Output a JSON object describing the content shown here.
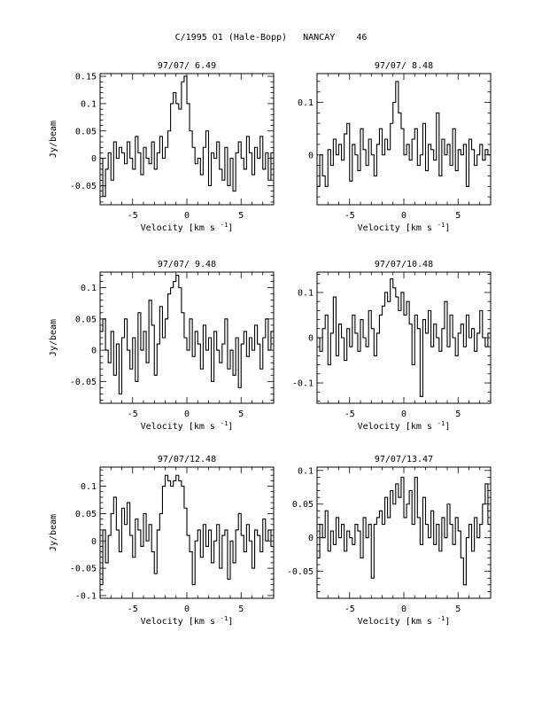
{
  "page": {
    "title": "C/1995 O1 (Hale-Bopp)   NANCAY    46"
  },
  "chart_data": [
    {
      "type": "line",
      "title": "97/07/ 6.49",
      "xlabel": "Velocity [km s",
      "xlabel_sup": "-1",
      "xlabel_close": "]",
      "ylabel": "Jy/beam",
      "xlim": [
        -8,
        8
      ],
      "ylim": [
        -0.085,
        0.155
      ],
      "xticks": [
        -5,
        0,
        5
      ],
      "xtick_labels": [
        "-5",
        "0",
        "5"
      ],
      "yticks": [
        -0.05,
        0,
        0.05,
        0.1,
        0.15
      ],
      "ytick_labels": [
        "-0.05",
        "0",
        "0.05",
        "0.1",
        "0.15"
      ],
      "series": [
        {
          "x": [
            -8.0,
            -7.75,
            -7.5,
            -7.25,
            -7.0,
            -6.75,
            -6.5,
            -6.25,
            -6.0,
            -5.75,
            -5.5,
            -5.25,
            -5.0,
            -4.75,
            -4.5,
            -4.25,
            -4.0,
            -3.75,
            -3.5,
            -3.25,
            -3.0,
            -2.75,
            -2.5,
            -2.25,
            -2.0,
            -1.75,
            -1.5,
            -1.25,
            -1.0,
            -0.75,
            -0.5,
            -0.25,
            0.0,
            0.25,
            0.5,
            0.75,
            1.0,
            1.25,
            1.5,
            1.75,
            2.0,
            2.25,
            2.5,
            2.75,
            3.0,
            3.25,
            3.5,
            3.75,
            4.0,
            4.25,
            4.5,
            4.75,
            5.0,
            5.25,
            5.5,
            5.75,
            6.0,
            6.25,
            6.5,
            6.75,
            7.0,
            7.25,
            7.5,
            7.75
          ],
          "y": [
            0.0,
            -0.07,
            -0.02,
            0.01,
            -0.04,
            0.03,
            0.0,
            0.02,
            0.01,
            -0.01,
            0.03,
            0.0,
            -0.02,
            0.04,
            0.01,
            -0.03,
            0.02,
            0.0,
            -0.01,
            0.03,
            -0.02,
            0.01,
            0.04,
            0.0,
            0.02,
            0.05,
            0.1,
            0.12,
            0.1,
            0.09,
            0.14,
            0.15,
            0.1,
            0.05,
            0.02,
            -0.01,
            0.0,
            -0.03,
            0.02,
            0.05,
            -0.05,
            0.01,
            0.0,
            0.03,
            -0.02,
            -0.04,
            0.02,
            -0.05,
            0.0,
            -0.06,
            0.01,
            0.03,
            0.0,
            -0.02,
            0.04,
            0.01,
            -0.03,
            0.02,
            0.0,
            0.04,
            -0.02,
            0.01,
            -0.04,
            0.01
          ]
        }
      ]
    },
    {
      "type": "line",
      "title": "97/07/ 8.48",
      "xlabel": "Velocity [km s",
      "xlabel_sup": "-1",
      "xlabel_close": "]",
      "ylabel": "",
      "xlim": [
        -8,
        8
      ],
      "ylim": [
        -0.095,
        0.155
      ],
      "xticks": [
        -5,
        0,
        5
      ],
      "xtick_labels": [
        "-5",
        "0",
        "5"
      ],
      "yticks": [
        0,
        0.1
      ],
      "ytick_labels": [
        "0",
        "0.1"
      ],
      "series": [
        {
          "x": [
            -8.0,
            -7.75,
            -7.5,
            -7.25,
            -7.0,
            -6.75,
            -6.5,
            -6.25,
            -6.0,
            -5.75,
            -5.5,
            -5.25,
            -5.0,
            -4.75,
            -4.5,
            -4.25,
            -4.0,
            -3.75,
            -3.5,
            -3.25,
            -3.0,
            -2.75,
            -2.5,
            -2.25,
            -2.0,
            -1.75,
            -1.5,
            -1.25,
            -1.0,
            -0.75,
            -0.5,
            -0.25,
            0.0,
            0.25,
            0.5,
            0.75,
            1.0,
            1.25,
            1.5,
            1.75,
            2.0,
            2.25,
            2.5,
            2.75,
            3.0,
            3.25,
            3.5,
            3.75,
            4.0,
            4.25,
            4.5,
            4.75,
            5.0,
            5.25,
            5.5,
            5.75,
            6.0,
            6.25,
            6.5,
            6.75,
            7.0,
            7.25,
            7.5,
            7.75
          ],
          "y": [
            -0.06,
            0.0,
            -0.04,
            -0.06,
            0.01,
            -0.02,
            0.03,
            0.0,
            0.02,
            -0.01,
            0.04,
            0.06,
            -0.05,
            0.02,
            0.0,
            -0.03,
            0.05,
            0.01,
            -0.02,
            0.03,
            0.0,
            -0.04,
            0.02,
            0.05,
            0.0,
            0.03,
            0.01,
            0.06,
            0.1,
            0.14,
            0.08,
            0.05,
            0.0,
            0.02,
            -0.01,
            0.03,
            0.05,
            -0.02,
            0.0,
            0.06,
            -0.03,
            0.02,
            0.01,
            -0.01,
            0.08,
            -0.04,
            0.03,
            0.0,
            0.02,
            -0.02,
            0.05,
            -0.03,
            0.01,
            0.0,
            0.02,
            -0.06,
            0.03,
            0.01,
            -0.02,
            0.0,
            0.02,
            -0.01,
            0.01,
            0.0
          ]
        }
      ]
    },
    {
      "type": "line",
      "title": "97/07/ 9.48",
      "xlabel": "Velocity [km s",
      "xlabel_sup": "-1",
      "xlabel_close": "]",
      "ylabel": "Jy/beam",
      "xlim": [
        -8,
        8
      ],
      "ylim": [
        -0.085,
        0.125
      ],
      "xticks": [
        -5,
        0,
        5
      ],
      "xtick_labels": [
        "-5",
        "0",
        "5"
      ],
      "yticks": [
        -0.05,
        0,
        0.05,
        0.1
      ],
      "ytick_labels": [
        "-0.05",
        "0",
        "0.05",
        "0.1"
      ],
      "series": [
        {
          "x": [
            -8.0,
            -7.75,
            -7.5,
            -7.25,
            -7.0,
            -6.75,
            -6.5,
            -6.25,
            -6.0,
            -5.75,
            -5.5,
            -5.25,
            -5.0,
            -4.75,
            -4.5,
            -4.25,
            -4.0,
            -3.75,
            -3.5,
            -3.25,
            -3.0,
            -2.75,
            -2.5,
            -2.25,
            -2.0,
            -1.75,
            -1.5,
            -1.25,
            -1.0,
            -0.75,
            -0.5,
            -0.25,
            0.0,
            0.25,
            0.5,
            0.75,
            1.0,
            1.25,
            1.5,
            1.75,
            2.0,
            2.25,
            2.5,
            2.75,
            3.0,
            3.25,
            3.5,
            3.75,
            4.0,
            4.25,
            4.5,
            4.75,
            5.0,
            5.25,
            5.5,
            5.75,
            6.0,
            6.25,
            6.5,
            6.75,
            7.0,
            7.25,
            7.5,
            7.75
          ],
          "y": [
            0.03,
            0.05,
            0.0,
            -0.02,
            0.03,
            -0.04,
            0.01,
            -0.07,
            0.02,
            0.05,
            0.0,
            -0.03,
            0.02,
            -0.05,
            0.06,
            0.0,
            0.03,
            -0.02,
            0.08,
            0.04,
            -0.04,
            0.01,
            0.07,
            0.02,
            0.05,
            0.09,
            0.1,
            0.11,
            0.12,
            0.1,
            0.06,
            0.02,
            0.0,
            0.05,
            -0.01,
            0.03,
            0.01,
            -0.03,
            0.04,
            0.0,
            0.02,
            -0.05,
            0.03,
            0.0,
            -0.02,
            0.01,
            0.05,
            -0.03,
            0.0,
            -0.04,
            0.02,
            -0.06,
            0.01,
            0.03,
            -0.01,
            0.02,
            0.0,
            0.04,
            0.01,
            -0.03,
            0.02,
            0.05,
            0.0,
            0.03
          ]
        }
      ]
    },
    {
      "type": "line",
      "title": "97/07/10.48",
      "xlabel": "Velocity [km s",
      "xlabel_sup": "-1",
      "xlabel_close": "]",
      "ylabel": "",
      "xlim": [
        -8,
        8
      ],
      "ylim": [
        -0.145,
        0.145
      ],
      "xticks": [
        -5,
        0,
        5
      ],
      "xtick_labels": [
        "-5",
        "0",
        "5"
      ],
      "yticks": [
        -0.1,
        0,
        0.1
      ],
      "ytick_labels": [
        "-0.1",
        "0",
        "0.1"
      ],
      "series": [
        {
          "x": [
            -8.0,
            -7.75,
            -7.5,
            -7.25,
            -7.0,
            -6.75,
            -6.5,
            -6.25,
            -6.0,
            -5.75,
            -5.5,
            -5.25,
            -5.0,
            -4.75,
            -4.5,
            -4.25,
            -4.0,
            -3.75,
            -3.5,
            -3.25,
            -3.0,
            -2.75,
            -2.5,
            -2.25,
            -2.0,
            -1.75,
            -1.5,
            -1.25,
            -1.0,
            -0.75,
            -0.5,
            -0.25,
            0.0,
            0.25,
            0.5,
            0.75,
            1.0,
            1.25,
            1.5,
            1.75,
            2.0,
            2.25,
            2.5,
            2.75,
            3.0,
            3.25,
            3.5,
            3.75,
            4.0,
            4.25,
            4.5,
            4.75,
            5.0,
            5.25,
            5.5,
            5.75,
            6.0,
            6.25,
            6.5,
            6.75,
            7.0,
            7.25,
            7.5,
            7.75
          ],
          "y": [
            0.0,
            -0.03,
            0.02,
            0.05,
            -0.06,
            0.01,
            0.09,
            -0.04,
            0.03,
            0.0,
            -0.05,
            0.02,
            -0.02,
            0.05,
            0.01,
            -0.03,
            0.04,
            0.0,
            -0.02,
            0.06,
            0.02,
            -0.04,
            0.01,
            0.05,
            0.07,
            0.1,
            0.08,
            0.13,
            0.11,
            0.09,
            0.06,
            0.1,
            0.05,
            0.08,
            0.03,
            -0.06,
            0.05,
            0.02,
            -0.13,
            0.04,
            0.01,
            0.06,
            -0.02,
            0.03,
            0.0,
            -0.03,
            0.02,
            0.08,
            -0.02,
            0.05,
            0.0,
            -0.04,
            0.01,
            0.03,
            -0.02,
            0.05,
            0.0,
            0.02,
            -0.03,
            0.01,
            0.06,
            0.0,
            -0.02,
            0.01
          ]
        }
      ]
    },
    {
      "type": "line",
      "title": "97/07/12.48",
      "xlabel": "Velocity [km s",
      "xlabel_sup": "-1",
      "xlabel_close": "]",
      "ylabel": "Jy/beam",
      "xlim": [
        -8,
        8
      ],
      "ylim": [
        -0.105,
        0.135
      ],
      "xticks": [
        -5,
        0,
        5
      ],
      "xtick_labels": [
        "-5",
        "0",
        "5"
      ],
      "yticks": [
        -0.1,
        -0.05,
        0,
        0.05,
        0.1
      ],
      "ytick_labels": [
        "-0.1",
        "-0.05",
        "0",
        "0.05",
        "0.1"
      ],
      "series": [
        {
          "x": [
            -8.0,
            -7.75,
            -7.5,
            -7.25,
            -7.0,
            -6.75,
            -6.5,
            -6.25,
            -6.0,
            -5.75,
            -5.5,
            -5.25,
            -5.0,
            -4.75,
            -4.5,
            -4.25,
            -4.0,
            -3.75,
            -3.5,
            -3.25,
            -3.0,
            -2.75,
            -2.5,
            -2.25,
            -2.0,
            -1.75,
            -1.5,
            -1.25,
            -1.0,
            -0.75,
            -0.5,
            -0.25,
            0.0,
            0.25,
            0.5,
            0.75,
            1.0,
            1.25,
            1.5,
            1.75,
            2.0,
            2.25,
            2.5,
            2.75,
            3.0,
            3.25,
            3.5,
            3.75,
            4.0,
            4.25,
            4.5,
            4.75,
            5.0,
            5.25,
            5.5,
            5.75,
            6.0,
            6.25,
            6.5,
            6.75,
            7.0,
            7.25,
            7.5,
            7.75
          ],
          "y": [
            -0.08,
            0.02,
            -0.04,
            0.01,
            0.05,
            0.08,
            0.02,
            -0.02,
            0.06,
            0.03,
            0.07,
            0.01,
            -0.03,
            0.04,
            0.02,
            -0.01,
            0.05,
            0.0,
            0.03,
            -0.02,
            -0.06,
            0.02,
            0.05,
            0.1,
            0.12,
            0.11,
            0.1,
            0.11,
            0.12,
            0.11,
            0.1,
            0.06,
            0.01,
            -0.02,
            -0.08,
            0.0,
            0.02,
            -0.03,
            0.03,
            -0.01,
            0.02,
            -0.04,
            0.0,
            0.03,
            -0.05,
            0.01,
            0.02,
            -0.07,
            0.0,
            -0.04,
            0.02,
            0.05,
            0.01,
            -0.02,
            0.03,
            0.0,
            -0.05,
            0.02,
            0.01,
            -0.02,
            0.04,
            0.0,
            0.02,
            -0.01
          ]
        }
      ]
    },
    {
      "type": "line",
      "title": "97/07/13.47",
      "xlabel": "Velocity [km s",
      "xlabel_sup": "-1",
      "xlabel_close": "]",
      "ylabel": "",
      "xlim": [
        -8,
        8
      ],
      "ylim": [
        -0.09,
        0.105
      ],
      "xticks": [
        -5,
        0,
        5
      ],
      "xtick_labels": [
        "-5",
        "0",
        "5"
      ],
      "yticks": [
        -0.05,
        0,
        0.05,
        0.1
      ],
      "ytick_labels": [
        "-0.05",
        "0",
        "0.05",
        "0.1"
      ],
      "series": [
        {
          "x": [
            -8.0,
            -7.75,
            -7.5,
            -7.25,
            -7.0,
            -6.75,
            -6.5,
            -6.25,
            -6.0,
            -5.75,
            -5.5,
            -5.25,
            -5.0,
            -4.75,
            -4.5,
            -4.25,
            -4.0,
            -3.75,
            -3.5,
            -3.25,
            -3.0,
            -2.75,
            -2.5,
            -2.25,
            -2.0,
            -1.75,
            -1.5,
            -1.25,
            -1.0,
            -0.75,
            -0.5,
            -0.25,
            0.0,
            0.25,
            0.5,
            0.75,
            1.0,
            1.25,
            1.5,
            1.75,
            2.0,
            2.25,
            2.5,
            2.75,
            3.0,
            3.25,
            3.5,
            3.75,
            4.0,
            4.25,
            4.5,
            4.75,
            5.0,
            5.25,
            5.5,
            5.75,
            6.0,
            6.25,
            6.5,
            6.75,
            7.0,
            7.25,
            7.5,
            7.75
          ],
          "y": [
            -0.03,
            0.02,
            0.0,
            0.04,
            -0.02,
            0.01,
            -0.01,
            0.03,
            0.0,
            0.02,
            -0.02,
            0.01,
            0.0,
            -0.01,
            0.02,
            0.01,
            -0.03,
            0.03,
            0.0,
            0.02,
            -0.06,
            0.02,
            0.03,
            0.04,
            0.02,
            0.06,
            0.03,
            0.07,
            0.05,
            0.08,
            0.06,
            0.09,
            0.03,
            0.05,
            0.07,
            0.02,
            0.09,
            0.03,
            -0.01,
            0.06,
            0.02,
            0.0,
            0.04,
            -0.01,
            0.02,
            -0.02,
            0.03,
            0.0,
            0.05,
            0.02,
            -0.01,
            0.03,
            0.01,
            -0.03,
            -0.07,
            0.0,
            0.02,
            -0.02,
            0.03,
            0.0,
            0.02,
            0.05,
            0.08,
            0.02
          ]
        }
      ]
    }
  ]
}
